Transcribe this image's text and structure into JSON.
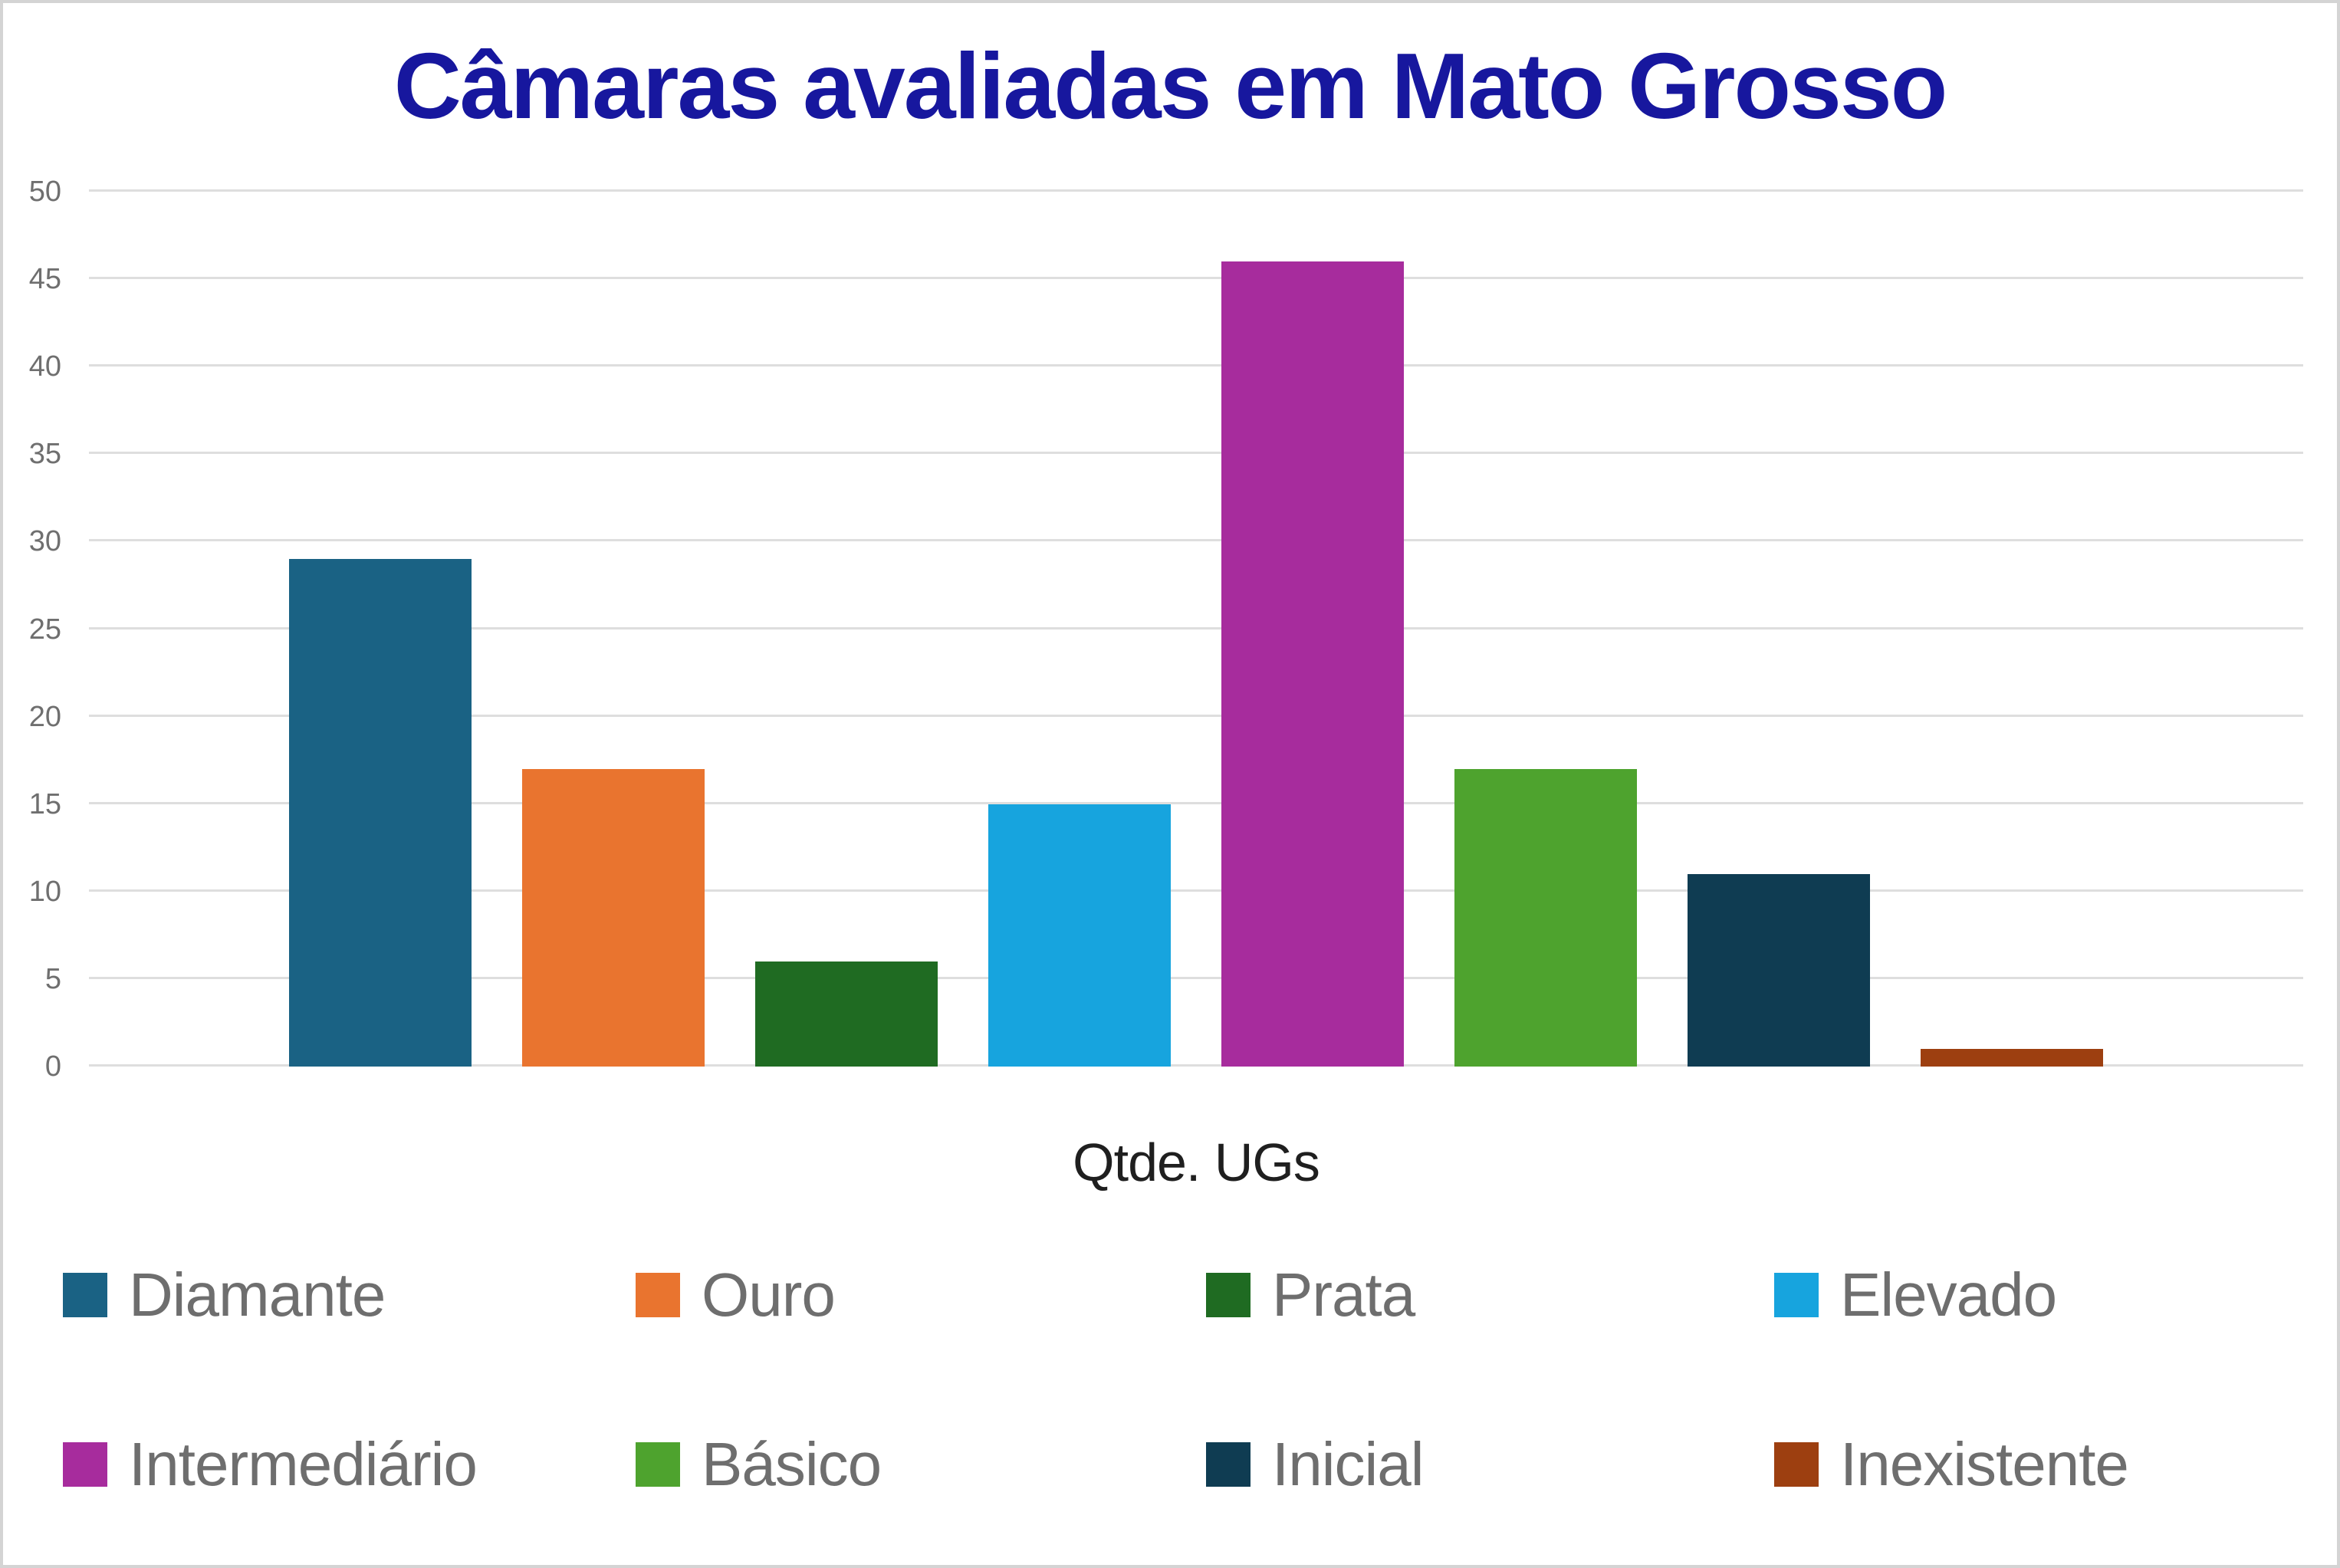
{
  "title": "Câmaras avaliadas em Mato Grosso",
  "title_color": "#17179e",
  "chart_data": {
    "type": "bar",
    "title": "Câmaras avaliadas em Mato Grosso",
    "xlabel": "Qtde. UGs",
    "ylabel": "",
    "ylim": [
      0,
      50
    ],
    "ytick_step": 5,
    "yticks": [
      0,
      5,
      10,
      15,
      20,
      25,
      30,
      35,
      40,
      45,
      50
    ],
    "grid": true,
    "legend_position": "bottom",
    "categories": [
      "Diamante",
      "Ouro",
      "Prata",
      "Elevado",
      "Intermediário",
      "Básico",
      "Inicial",
      "Inexistente"
    ],
    "values": [
      29,
      17,
      6,
      15,
      46,
      17,
      11,
      1
    ],
    "colors": [
      "#1a6284",
      "#e9742f",
      "#1f6b22",
      "#17a4de",
      "#a72c9d",
      "#4ea32e",
      "#0f3c52",
      "#9d3f10"
    ]
  },
  "colors": {
    "grid": "#dedede",
    "tick_text": "#6f6f6f",
    "legend_text": "#6e6e6e",
    "border": "#d4d4d4",
    "background": "#ffffff"
  }
}
